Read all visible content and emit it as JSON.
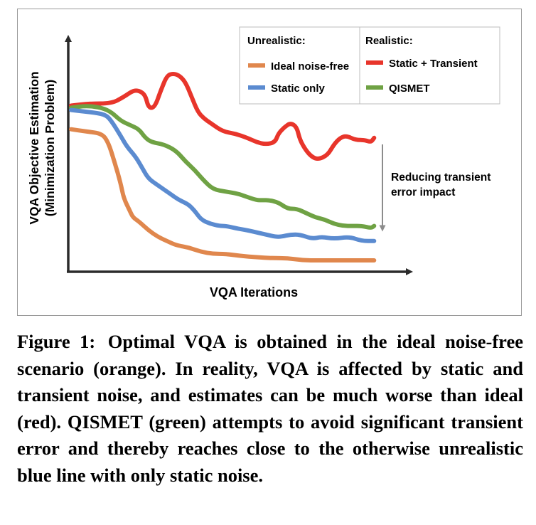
{
  "chart_data": {
    "type": "line",
    "xlabel": "VQA Iterations",
    "ylabel_line1": "VQA Objective Estimation",
    "ylabel_line2": "(Minimization Problem)",
    "x_range": [
      0,
      100
    ],
    "y_range": [
      0,
      100
    ],
    "legend": {
      "placement": "top-right",
      "groups": [
        {
          "header": "Unrealistic:",
          "entries": [
            "Ideal noise-free",
            "Static only"
          ]
        },
        {
          "header": "Realistic:",
          "entries": [
            "Static + Transient",
            "QISMET"
          ]
        }
      ]
    },
    "annotation": {
      "line1": "Reducing transient",
      "line2": "error impact",
      "from_series": "Static + Transient",
      "to_series": "QISMET",
      "at_x": 98
    },
    "series": [
      {
        "name": "Static + Transient",
        "color": "#e8352b",
        "x": [
          0,
          6,
          13,
          17,
          20,
          22,
          24,
          25,
          27,
          29,
          31,
          33,
          35,
          37,
          39,
          41,
          43,
          45,
          49,
          53,
          57,
          60,
          63,
          66,
          67,
          69,
          71,
          73,
          74,
          76,
          78,
          80,
          83,
          85,
          87,
          89,
          92,
          95,
          97,
          98
        ],
        "y": [
          74,
          75,
          75,
          78,
          81,
          81,
          79,
          73,
          73,
          81,
          88,
          89,
          88,
          85,
          78,
          71,
          68,
          66,
          62,
          61,
          59,
          57,
          56,
          57,
          61,
          64,
          66,
          64,
          58,
          53,
          50,
          49,
          51,
          56,
          59,
          60,
          58,
          58,
          57,
          59
        ]
      },
      {
        "name": "QISMET",
        "color": "#6fa244",
        "x": [
          0,
          5,
          10,
          13,
          16,
          19,
          22,
          24,
          26,
          30,
          34,
          37,
          40,
          43,
          46,
          50,
          54,
          56,
          60,
          62,
          64,
          67,
          70,
          73,
          76,
          79,
          82,
          85,
          88,
          91,
          94,
          97,
          98
        ],
        "y": [
          73,
          74,
          73,
          71,
          67,
          65,
          63,
          59,
          57,
          56,
          53,
          48,
          44,
          39,
          35,
          34,
          33,
          32,
          30,
          30,
          30,
          29,
          26,
          26,
          24,
          22,
          21,
          19,
          18,
          18,
          18,
          17,
          18
        ]
      },
      {
        "name": "Static only",
        "color": "#5b8bd0",
        "x": [
          0,
          6,
          11,
          13,
          16,
          18,
          21,
          23,
          25,
          28,
          32,
          35,
          38,
          40,
          42,
          45,
          48,
          50,
          53,
          57,
          60,
          63,
          66,
          68,
          71,
          74,
          78,
          81,
          85,
          90,
          94,
          98
        ],
        "y": [
          72,
          71,
          70,
          67,
          60,
          55,
          50,
          45,
          40,
          37,
          33,
          30,
          28,
          25,
          21,
          19,
          18,
          18,
          17,
          16,
          15,
          14,
          13,
          13,
          14,
          14,
          12,
          13,
          12,
          13,
          11,
          11
        ]
      },
      {
        "name": "Ideal noise-free",
        "color": "#e0874d",
        "x": [
          0,
          5,
          10,
          12,
          14,
          16,
          17,
          19,
          20,
          22,
          25,
          28,
          31,
          34,
          38,
          42,
          46,
          50,
          55,
          60,
          65,
          70,
          75,
          80,
          85,
          90,
          98
        ],
        "y": [
          63,
          62,
          61,
          57,
          48,
          38,
          31,
          25,
          22,
          20,
          16,
          13,
          11,
          9,
          8,
          6,
          5,
          5,
          4,
          3.5,
          3,
          3,
          2,
          2,
          2,
          2,
          2
        ]
      }
    ]
  },
  "caption": {
    "label": "Figure 1:",
    "text": "Optimal VQA is obtained in the ideal noise-free scenario (orange). In reality, VQA is affected by static and transient noise, and estimates can be much worse than ideal (red). QISMET (green) attempts to avoid significant transient error and thereby reaches close to the otherwise unrealistic blue line with only static noise."
  }
}
